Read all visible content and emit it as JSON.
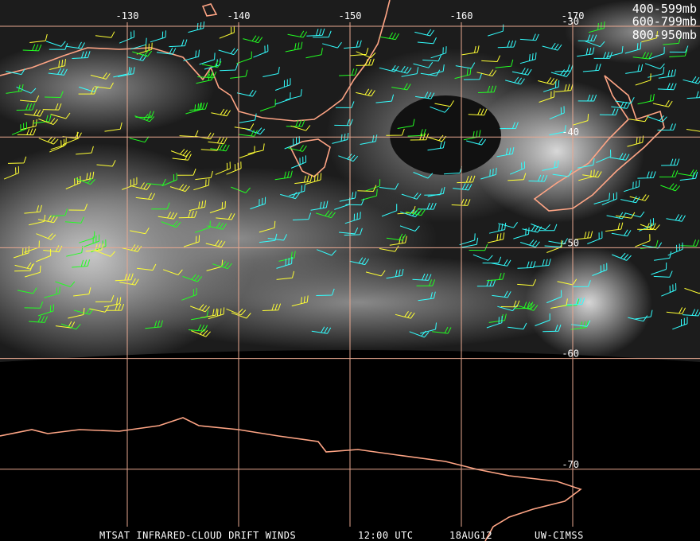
{
  "map": {
    "longitude_labels": [
      -130,
      -140,
      -150,
      -160,
      -170
    ],
    "latitude_labels": [
      -30,
      -40,
      -50,
      -60,
      -70
    ],
    "legend": [
      {
        "label": "400-599mb",
        "color": "#22ff22"
      },
      {
        "label": "600-799mb",
        "color": "#ffff33"
      },
      {
        "label": "800-950mb",
        "color": "#33ffff"
      }
    ],
    "footer": {
      "product": "MTSAT INFRARED-CLOUD DRIFT WINDS",
      "time": "12:00 UTC",
      "date": "18AUG12",
      "source": "UW-CIMSS"
    }
  }
}
